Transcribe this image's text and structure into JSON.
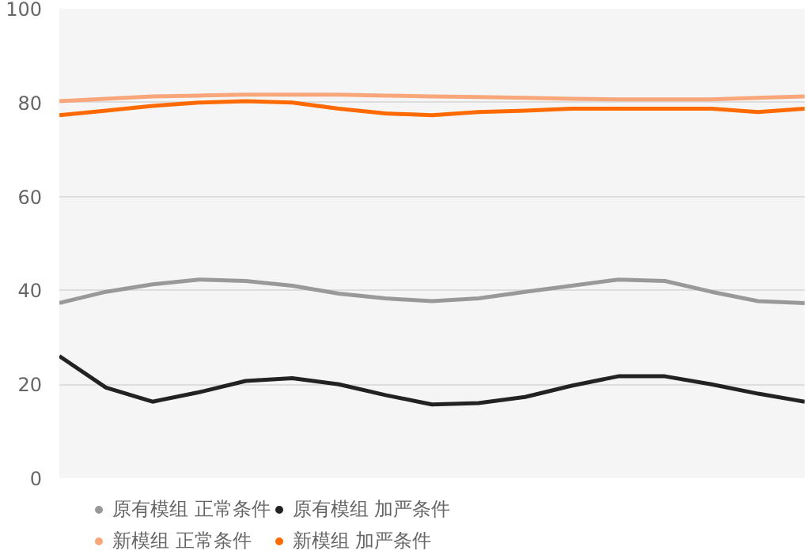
{
  "chart_data": {
    "type": "line",
    "categories": [
      null,
      null,
      null,
      null,
      null,
      null,
      null,
      null,
      null,
      null,
      null,
      null,
      null,
      null,
      null,
      null,
      null
    ],
    "ylim": [
      0,
      100
    ],
    "yticks": [
      0,
      20,
      40,
      60,
      80,
      100
    ],
    "grid": "y",
    "legend": "bottom",
    "tick_labels": "y",
    "marker": "none",
    "line_style": "solid",
    "series": [
      {
        "name": "原有模组 正常条件",
        "color": "#999999",
        "values": [
          37.3,
          39.7,
          41.3,
          42.3,
          42,
          41,
          39.3,
          38.3,
          37.7,
          38.3,
          39.7,
          41,
          42.3,
          42,
          39.7,
          37.7,
          37.3
        ]
      },
      {
        "name": "原有模组 加严条件",
        "color": "#222222",
        "values": [
          26,
          19.3,
          16.3,
          18.3,
          20.7,
          21.3,
          20,
          17.7,
          15.7,
          16,
          17.3,
          19.7,
          21.7,
          21.7,
          20,
          18,
          16.3
        ]
      },
      {
        "name": "新模组 正常条件",
        "color": "#f9a77a",
        "values": [
          80.3,
          80.8,
          81.3,
          81.5,
          81.7,
          81.7,
          81.7,
          81.5,
          81.3,
          81.2,
          81,
          80.8,
          80.7,
          80.7,
          80.7,
          81,
          81.3
        ]
      },
      {
        "name": "新模组 加严条件",
        "color": "#ff6a00",
        "values": [
          77.3,
          78.3,
          79.3,
          80,
          80.3,
          80,
          78.7,
          77.7,
          77.3,
          78,
          78.3,
          78.7,
          78.7,
          78.7,
          78.7,
          78,
          78.7
        ]
      }
    ]
  }
}
